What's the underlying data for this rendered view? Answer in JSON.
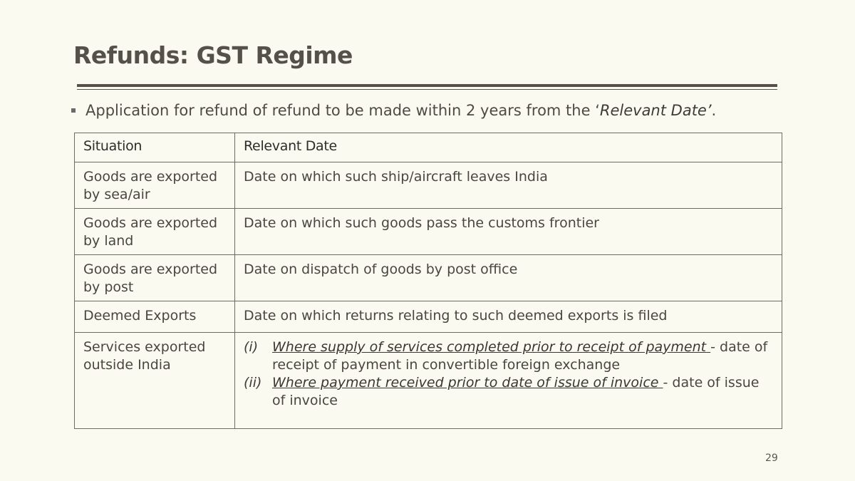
{
  "slide": {
    "title": "Refunds: GST Regime",
    "page_number": "29"
  },
  "bullet": {
    "text_before": "Application for refund of refund to be made within 2 years from the ‘",
    "emphasis": "Relevant Date’",
    "text_after": "."
  },
  "table": {
    "headers": [
      "Situation",
      "Relevant Date"
    ],
    "rows": [
      {
        "situation": "Goods are exported by sea/air",
        "relevant_date": "Date on which such ship/aircraft   leaves India"
      },
      {
        "situation": "Goods are exported by land",
        "relevant_date": "Date on which such goods pass the customs frontier"
      },
      {
        "situation": "Goods are exported by post",
        "relevant_date": "Date on dispatch of goods by post office"
      },
      {
        "situation": "Deemed Exports",
        "relevant_date": "Date on which returns relating to such deemed exports is filed"
      },
      {
        "situation": "Services exported outside India",
        "items": [
          {
            "number": "(i)",
            "condition": "Where supply of services completed prior to receipt of payment ",
            "result": "- date of receipt of payment in convertible foreign   exchange"
          },
          {
            "number": "(ii)",
            "condition": "Where payment received prior to date of issue of invoice ",
            "result": "- date of issue of invoice"
          }
        ]
      }
    ]
  }
}
